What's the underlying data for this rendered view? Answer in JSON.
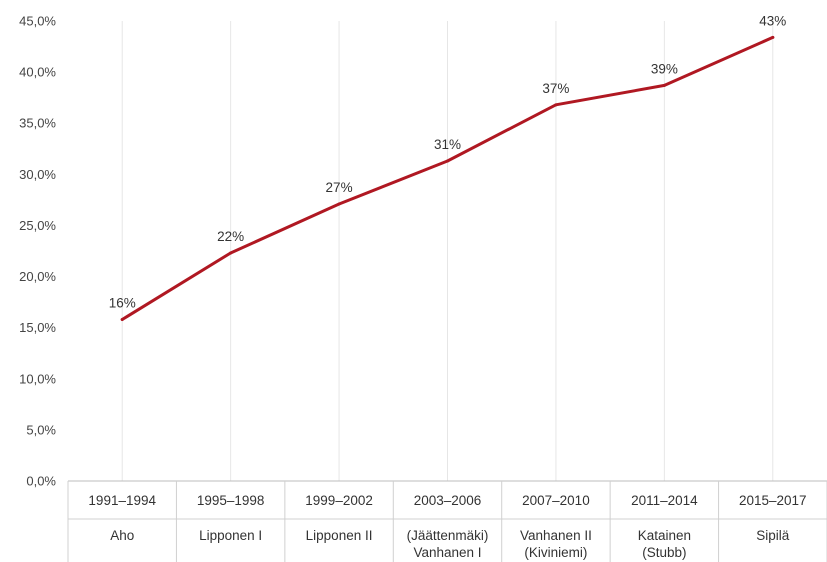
{
  "chart_data": {
    "type": "line",
    "title": "",
    "xlabel": "",
    "ylabel": "",
    "ylim": [
      0,
      45
    ],
    "y_ticks": [
      "0,0%",
      "5,0%",
      "10,0%",
      "15,0%",
      "20,0%",
      "25,0%",
      "30,0%",
      "35,0%",
      "40,0%",
      "45,0%"
    ],
    "categories": [
      {
        "period": "1991–1994",
        "govt": [
          "Aho"
        ]
      },
      {
        "period": "1995–1998",
        "govt": [
          "Lipponen I"
        ]
      },
      {
        "period": "1999–2002",
        "govt": [
          "Lipponen II"
        ]
      },
      {
        "period": "2003–2006",
        "govt": [
          "(Jäättenmäki)",
          "Vanhanen I"
        ]
      },
      {
        "period": "2007–2010",
        "govt": [
          "Vanhanen II",
          "(Kiviniemi)"
        ]
      },
      {
        "period": "2011–2014",
        "govt": [
          "Katainen",
          "(Stubb)"
        ]
      },
      {
        "period": "2015–2017",
        "govt": [
          "Sipilä"
        ]
      }
    ],
    "series": [
      {
        "values": [
          15.8,
          22.3,
          27.1,
          31.3,
          36.8,
          38.7,
          43.4
        ],
        "labels": [
          "16%",
          "22%",
          "27%",
          "31%",
          "37%",
          "39%",
          "43%"
        ],
        "color": "#b01822"
      }
    ],
    "grid": {
      "vertical": true,
      "horizontal": false
    },
    "legend": "none"
  }
}
